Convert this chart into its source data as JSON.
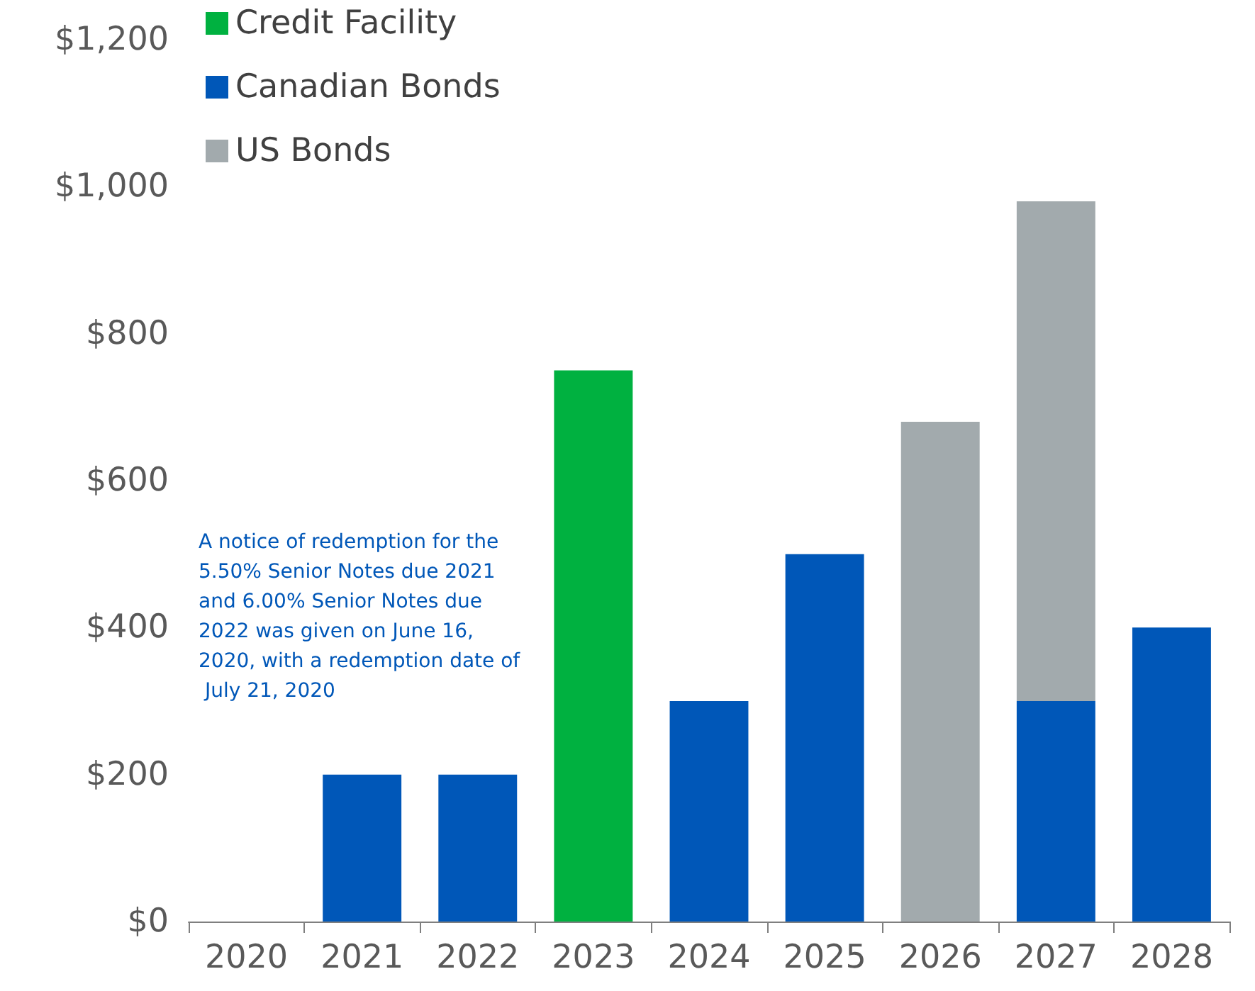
{
  "chart_data": {
    "type": "bar",
    "stacked": true,
    "categories": [
      "2020",
      "2021",
      "2022",
      "2023",
      "2024",
      "2025",
      "2026",
      "2027",
      "2028"
    ],
    "series": [
      {
        "name": "Credit Facility",
        "color": "#00b140",
        "values": [
          null,
          null,
          null,
          750,
          null,
          null,
          null,
          null,
          null
        ]
      },
      {
        "name": "Canadian Bonds",
        "color": "#0057b8",
        "values": [
          null,
          200,
          200,
          null,
          300,
          500,
          null,
          300,
          400
        ]
      },
      {
        "name": "US Bonds",
        "color": "#a2aaad",
        "values": [
          null,
          null,
          null,
          null,
          null,
          null,
          680,
          680,
          null
        ]
      }
    ],
    "ylim": [
      0,
      1200
    ],
    "yticks": [
      {
        "value": 0,
        "label": "$0"
      },
      {
        "value": 200,
        "label": "$200"
      },
      {
        "value": 400,
        "label": "$400"
      },
      {
        "value": 600,
        "label": "$600"
      },
      {
        "value": 800,
        "label": "$800"
      },
      {
        "value": 1000,
        "label": "$1,000"
      },
      {
        "value": 1200,
        "label": "$1,200"
      }
    ],
    "grid": false,
    "legend": "top left",
    "annotations": [
      "A notice of redemption for the 5.50% Senior Notes due 2021 and 6.00% Senior Notes due 2022 was given on June 16, 2020, with a redemption date of July 21, 2020"
    ]
  }
}
